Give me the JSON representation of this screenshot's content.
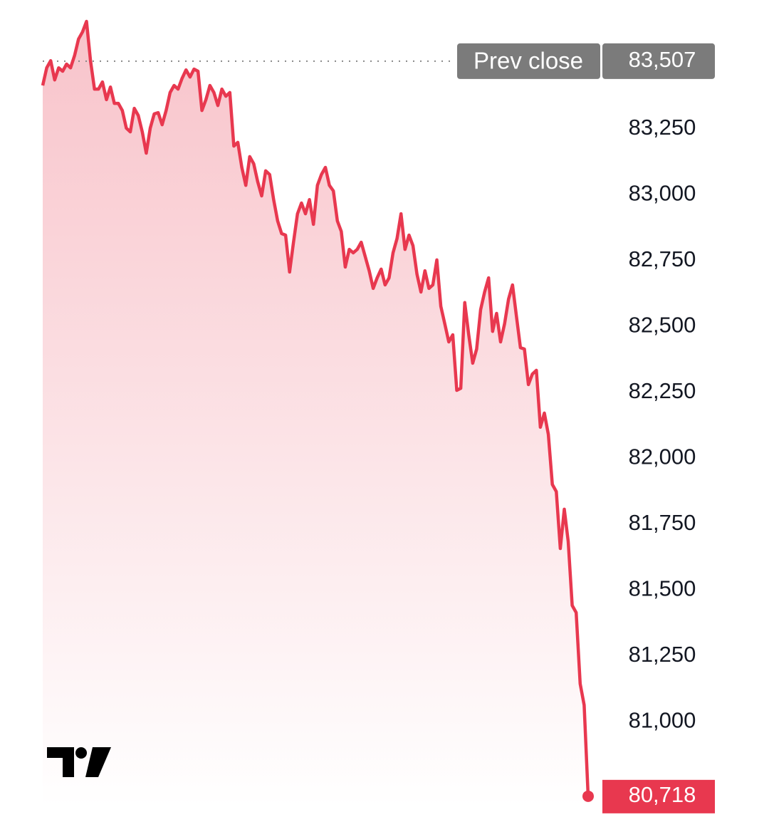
{
  "chart_data": {
    "type": "line",
    "values": [
      83415,
      83482,
      83509,
      83436,
      83482,
      83469,
      83496,
      83482,
      83528,
      83591,
      83618,
      83658,
      83509,
      83401,
      83401,
      83428,
      83361,
      83409,
      83347,
      83347,
      83320,
      83253,
      83239,
      83328,
      83301,
      83239,
      83158,
      83253,
      83307,
      83312,
      83266,
      83320,
      83388,
      83415,
      83401,
      83442,
      83474,
      83447,
      83477,
      83469,
      83320,
      83361,
      83415,
      83388,
      83339,
      83401,
      83374,
      83388,
      83185,
      83199,
      83104,
      83036,
      83145,
      83118,
      83050,
      82996,
      83091,
      83077,
      82982,
      82901,
      82853,
      82847,
      82707,
      82820,
      82928,
      82969,
      82928,
      82982,
      82888,
      83036,
      83077,
      83104,
      83036,
      83015,
      82901,
      82861,
      82726,
      82793,
      82780,
      82793,
      82820,
      82766,
      82712,
      82645,
      82685,
      82718,
      82658,
      82685,
      82780,
      82834,
      82928,
      82793,
      82847,
      82807,
      82699,
      82631,
      82712,
      82645,
      82658,
      82753,
      82577,
      82510,
      82442,
      82469,
      82258,
      82266,
      82591,
      82469,
      82361,
      82415,
      82564,
      82631,
      82685,
      82482,
      82550,
      82442,
      82510,
      82604,
      82658,
      82537,
      82420,
      82415,
      82280,
      82320,
      82334,
      82118,
      82172,
      82091,
      81901,
      81874,
      81658,
      81807,
      81685,
      81442,
      81415,
      81145,
      81064,
      80718
    ],
    "last_value_label": "80,718",
    "color": "#e8384f",
    "prev_close": {
      "label": "Prev close",
      "value": 83507,
      "value_label": "83,507"
    },
    "ylim": [
      80680,
      83690
    ],
    "yticks": [
      {
        "value": 81000,
        "label": "81,000"
      },
      {
        "value": 81250,
        "label": "81,250"
      },
      {
        "value": 81500,
        "label": "81,500"
      },
      {
        "value": 81750,
        "label": "81,750"
      },
      {
        "value": 82000,
        "label": "82,000"
      },
      {
        "value": 82250,
        "label": "82,250"
      },
      {
        "value": 82500,
        "label": "82,500"
      },
      {
        "value": 82750,
        "label": "82,750"
      },
      {
        "value": 83000,
        "label": "83,000"
      },
      {
        "value": 83250,
        "label": "83,250"
      }
    ],
    "grid": false
  }
}
